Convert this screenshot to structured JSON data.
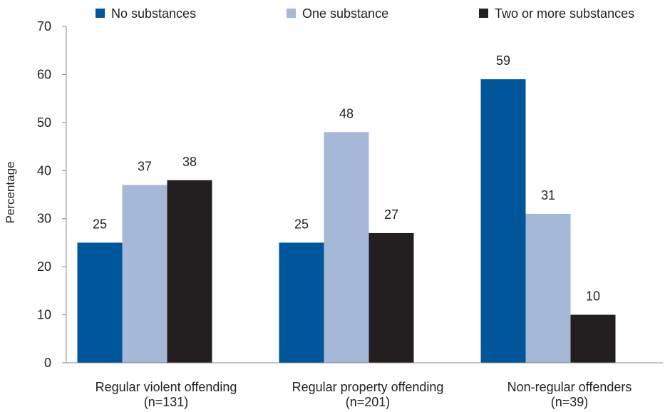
{
  "chart_data": {
    "type": "bar",
    "title": "",
    "xlabel": "",
    "ylabel": "Percentage",
    "ylim": [
      0,
      70
    ],
    "yticks": [
      0,
      10,
      20,
      30,
      40,
      50,
      60,
      70
    ],
    "grid": false,
    "legend_position": "top",
    "categories": [
      {
        "line1": "Regular violent offending",
        "line2": "(n=131)"
      },
      {
        "line1": "Regular property offending",
        "line2": "(n=201)"
      },
      {
        "line1": "Non-regular offenders",
        "line2": "(n=39)"
      }
    ],
    "series": [
      {
        "name": "No substances",
        "color": "#00569a",
        "values": [
          25,
          25,
          59
        ]
      },
      {
        "name": "One substance",
        "color": "#a5b8d8",
        "values": [
          37,
          48,
          31
        ]
      },
      {
        "name": "Two or more substances",
        "color": "#231f20",
        "values": [
          38,
          27,
          10
        ]
      }
    ]
  }
}
